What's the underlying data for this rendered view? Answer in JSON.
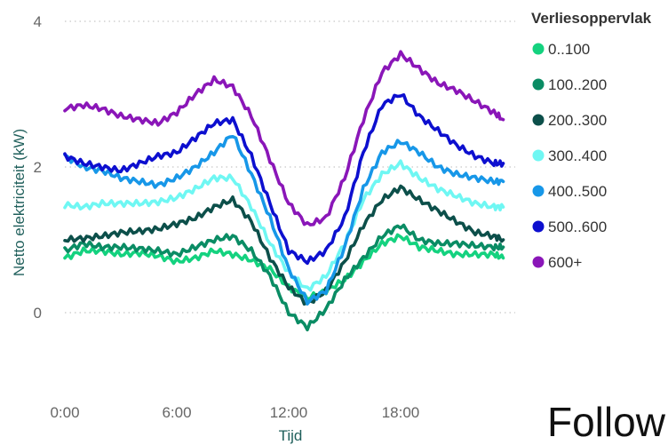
{
  "chart_data": {
    "type": "line",
    "ylabel": "Netto elektriciteit (kW)",
    "xlabel": "Tijd",
    "x_ticks": [
      "0:00",
      "6:00",
      "12:00",
      "18:00"
    ],
    "y_ticks": [
      "0",
      "2",
      "4"
    ],
    "ylim": [
      -0.3,
      4.1
    ],
    "xlim": [
      0,
      24
    ],
    "grid": "horizontal dotted",
    "legend_title": "Verliesoppervlak",
    "legend_position": "right",
    "series": [
      {
        "name": "0..100",
        "color": "#14d27f",
        "x": [
          0,
          1,
          2,
          3,
          4,
          5,
          6,
          7,
          8,
          9,
          10,
          11,
          12,
          13,
          14,
          15,
          16,
          17,
          18,
          19,
          20,
          21,
          22,
          23,
          23.5
        ],
        "y": [
          0.75,
          0.85,
          0.85,
          0.8,
          0.82,
          0.78,
          0.7,
          0.75,
          0.85,
          0.8,
          0.72,
          0.6,
          0.35,
          0.2,
          0.3,
          0.45,
          0.7,
          0.95,
          1.05,
          0.9,
          0.85,
          0.8,
          0.8,
          0.8,
          0.75
        ]
      },
      {
        "name": "100..200",
        "color": "#0a8c64",
        "x": [
          0,
          1,
          2,
          3,
          4,
          5,
          6,
          7,
          8,
          9,
          10,
          11,
          12,
          13,
          14,
          15,
          16,
          17,
          18,
          19,
          20,
          21,
          22,
          23,
          23.5
        ],
        "y": [
          0.85,
          0.95,
          0.9,
          0.9,
          0.88,
          0.85,
          0.8,
          0.9,
          1.0,
          1.05,
          0.85,
          0.5,
          0.0,
          -0.2,
          0.05,
          0.45,
          0.75,
          1.05,
          1.2,
          1.0,
          0.95,
          0.95,
          0.92,
          0.9,
          0.9
        ]
      },
      {
        "name": "200..300",
        "color": "#0c4f4a",
        "x": [
          0,
          1,
          2,
          3,
          4,
          5,
          6,
          7,
          8,
          9,
          10,
          11,
          12,
          13,
          14,
          15,
          16,
          17,
          18,
          19,
          20,
          21,
          22,
          23,
          23.5
        ],
        "y": [
          1.0,
          1.02,
          1.05,
          1.1,
          1.12,
          1.15,
          1.22,
          1.3,
          1.45,
          1.55,
          1.25,
          0.75,
          0.35,
          0.12,
          0.3,
          0.7,
          1.2,
          1.55,
          1.72,
          1.55,
          1.4,
          1.25,
          1.1,
          1.05,
          1.0
        ]
      },
      {
        "name": "300..400",
        "color": "#6ff7f3",
        "x": [
          0,
          1,
          2,
          3,
          4,
          5,
          6,
          7,
          8,
          9,
          10,
          11,
          12,
          13,
          14,
          15,
          16,
          17,
          18,
          19,
          20,
          21,
          22,
          23,
          23.5
        ],
        "y": [
          1.48,
          1.45,
          1.5,
          1.5,
          1.5,
          1.52,
          1.58,
          1.7,
          1.85,
          1.85,
          1.45,
          0.95,
          0.55,
          0.32,
          0.5,
          0.95,
          1.55,
          1.9,
          2.05,
          1.85,
          1.7,
          1.6,
          1.5,
          1.45,
          1.45
        ]
      },
      {
        "name": "400..500",
        "color": "#1797e8",
        "x": [
          0,
          1,
          2,
          3,
          4,
          5,
          6,
          7,
          8,
          9,
          10,
          11,
          12,
          13,
          14,
          15,
          16,
          17,
          18,
          19,
          20,
          21,
          22,
          23,
          23.5
        ],
        "y": [
          2.15,
          2.0,
          1.95,
          1.85,
          1.8,
          1.75,
          1.85,
          2.0,
          2.2,
          2.45,
          1.9,
          1.3,
          0.6,
          0.15,
          0.3,
          0.9,
          1.7,
          2.2,
          2.35,
          2.2,
          2.0,
          1.9,
          1.85,
          1.8,
          1.8
        ]
      },
      {
        "name": "500..600",
        "color": "#0d0fcf",
        "x": [
          0,
          1,
          2,
          3,
          4,
          5,
          6,
          7,
          8,
          9,
          10,
          11,
          12,
          13,
          14,
          15,
          16,
          17,
          18,
          19,
          20,
          21,
          22,
          23,
          23.5
        ],
        "y": [
          2.15,
          2.05,
          2.0,
          1.95,
          2.05,
          2.15,
          2.2,
          2.4,
          2.6,
          2.65,
          2.15,
          1.5,
          0.85,
          0.7,
          0.85,
          1.3,
          2.2,
          2.85,
          3.0,
          2.7,
          2.5,
          2.3,
          2.15,
          2.05,
          2.05
        ]
      },
      {
        "name": "600+",
        "color": "#8a16b8",
        "x": [
          0,
          1,
          2,
          3,
          4,
          5,
          6,
          7,
          8,
          9,
          10,
          11,
          12,
          13,
          14,
          15,
          16,
          17,
          18,
          19,
          20,
          21,
          22,
          23,
          23.5
        ],
        "y": [
          2.8,
          2.85,
          2.8,
          2.7,
          2.65,
          2.6,
          2.75,
          3.0,
          3.2,
          3.1,
          2.7,
          2.1,
          1.5,
          1.2,
          1.3,
          1.85,
          2.65,
          3.3,
          3.55,
          3.35,
          3.15,
          3.05,
          2.9,
          2.75,
          2.65
        ]
      }
    ]
  },
  "footer_text": "Follow"
}
